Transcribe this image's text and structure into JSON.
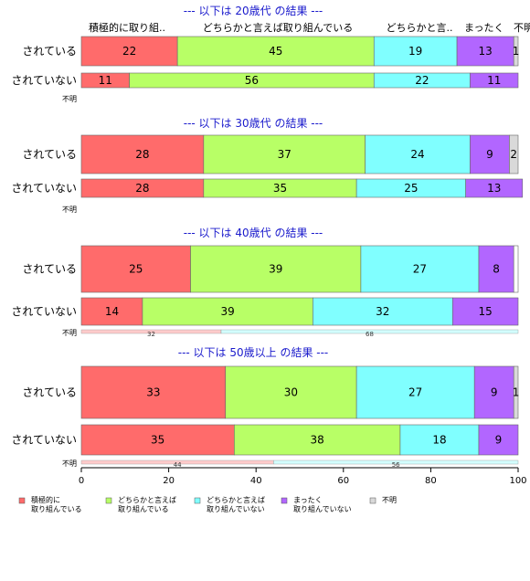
{
  "chart_data": {
    "type": "bar",
    "orientation": "horizontal-stacked-percent",
    "xlim": [
      0,
      100
    ],
    "xticks": [
      "0",
      "20",
      "40",
      "60",
      "80",
      "100"
    ],
    "column_headers": [
      "積極的に取り組..",
      "どちらかと言えば取り組んでいる",
      "どちらかと言..",
      "まったく",
      "不明"
    ],
    "legend": {
      "placement": "bottom",
      "items": [
        {
          "label_l1": "積極的に",
          "label_l2": "取り組んでいる",
          "color": "#ff6b6b"
        },
        {
          "label_l1": "どちらかと言えば",
          "label_l2": "取り組んでいる",
          "color": "#b8ff66"
        },
        {
          "label_l1": "どちらかと言えば",
          "label_l2": "取り組んでいない",
          "color": "#80ffff"
        },
        {
          "label_l1": "まったく",
          "label_l2": "取り組んでいない",
          "color": "#b266ff"
        },
        {
          "label_l1": "不明",
          "label_l2": "",
          "color": "#d9d9d9"
        }
      ]
    },
    "sections": [
      {
        "title": "--- 以下は 20歳代 の結果 ---",
        "rows": [
          {
            "label": "されている",
            "values": [
              22,
              45,
              19,
              13,
              1
            ]
          },
          {
            "label": "されていない",
            "values": [
              11,
              56,
              22,
              11,
              0
            ]
          }
        ],
        "unknown": {
          "label": "不明",
          "values": []
        }
      },
      {
        "title": "--- 以下は 30歳代 の結果 ---",
        "rows": [
          {
            "label": "されている",
            "values": [
              28,
              37,
              24,
              9,
              2
            ]
          },
          {
            "label": "されていない",
            "values": [
              28,
              35,
              25,
              13,
              0
            ]
          }
        ],
        "unknown": {
          "label": "不明",
          "values": []
        }
      },
      {
        "title": "--- 以下は 40歳代 の結果 ---",
        "rows": [
          {
            "label": "されている",
            "values": [
              25,
              39,
              27,
              8,
              0
            ]
          },
          {
            "label": "されていない",
            "values": [
              14,
              39,
              32,
              15,
              0
            ]
          }
        ],
        "unknown": {
          "label": "不明",
          "values": [
            32,
            0,
            68,
            0,
            0
          ]
        }
      },
      {
        "title": "--- 以下は 50歳以上 の結果 ---",
        "rows": [
          {
            "label": "されている",
            "values": [
              33,
              30,
              27,
              9,
              1
            ]
          },
          {
            "label": "されていない",
            "values": [
              35,
              38,
              18,
              9,
              0
            ]
          }
        ],
        "unknown": {
          "label": "不明",
          "values": [
            44,
            0,
            56,
            0,
            0
          ]
        }
      }
    ]
  }
}
